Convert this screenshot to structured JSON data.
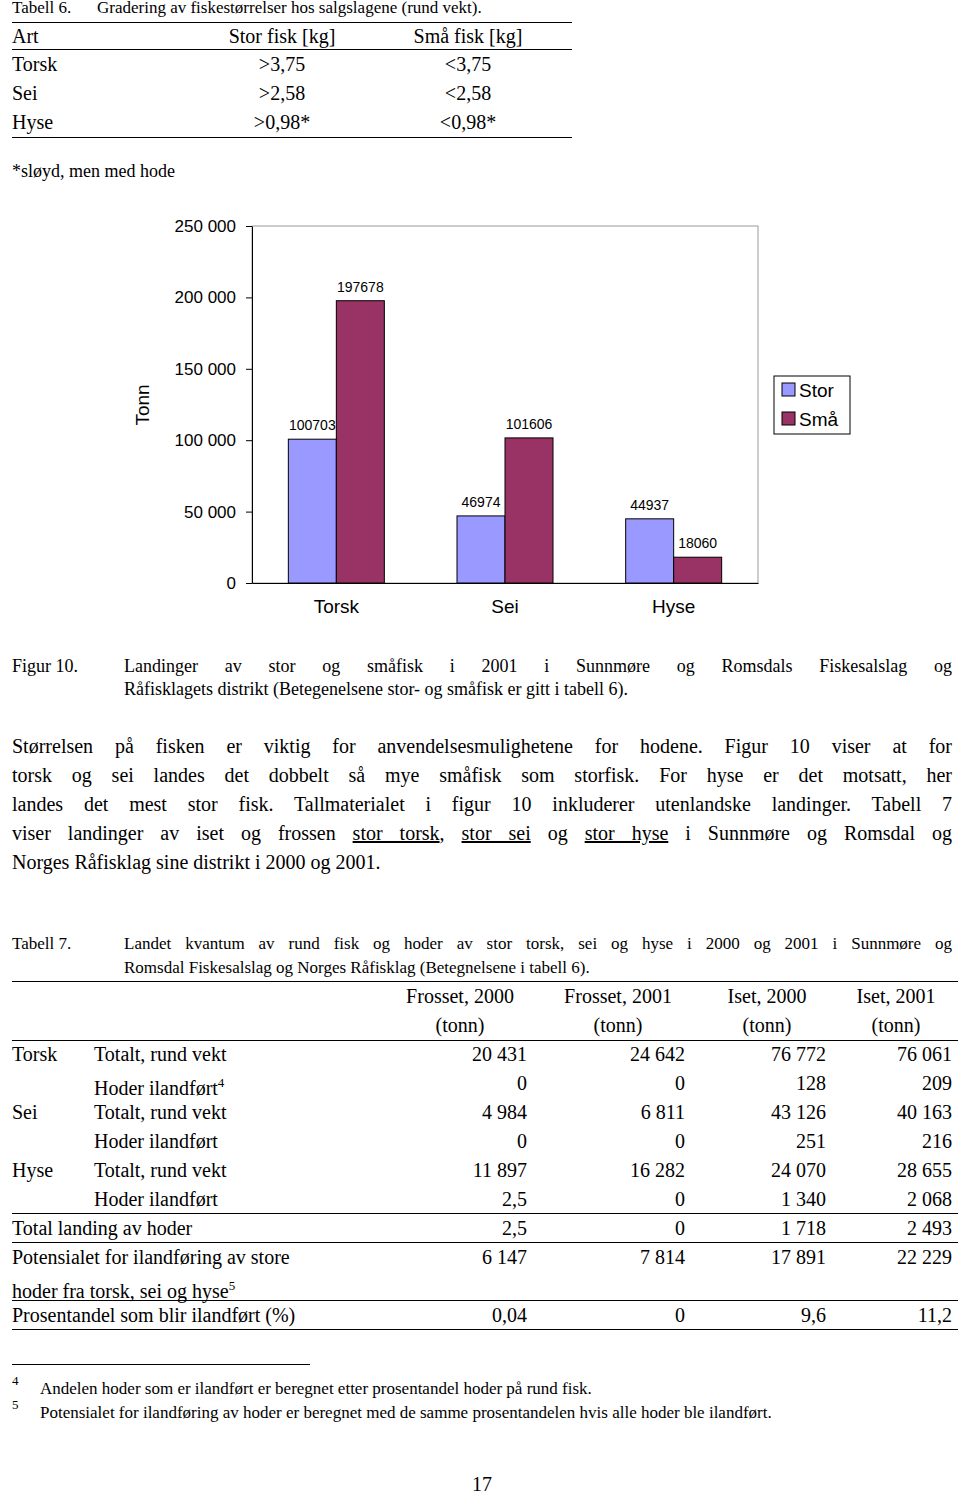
{
  "table6": {
    "caption_label": "Tabell 6.",
    "caption": "Gradering av fiskestørrelser hos salgslagene (rund vekt).",
    "header": [
      "Art",
      "Stor fisk [kg]",
      "Små fisk [kg]"
    ],
    "rows": [
      [
        "Torsk",
        ">3,75",
        "<3,75"
      ],
      [
        "Sei",
        ">2,58",
        "<2,58"
      ],
      [
        "Hyse",
        ">0,98*",
        "<0,98*"
      ]
    ],
    "note": "*sløyd, men med hode"
  },
  "chart_data": {
    "type": "bar",
    "y_label": "Tonn",
    "categories": [
      "Torsk",
      "Sei",
      "Hyse"
    ],
    "series": [
      {
        "name": "Stor",
        "color": "#9999ff",
        "values": [
          100703,
          46974,
          44937
        ]
      },
      {
        "name": "Små",
        "color": "#993366",
        "values": [
          197678,
          101606,
          18060
        ]
      }
    ],
    "ylim": [
      0,
      250000
    ],
    "yticks": [
      0,
      {
        "value": 50000,
        "label": "50 000"
      },
      {
        "value": 100000,
        "label": "100 000"
      },
      {
        "value": 150000,
        "label": "150 000"
      },
      {
        "value": 200000,
        "label": "200 000"
      },
      {
        "value": 250000,
        "label": "250 000"
      }
    ],
    "grid": false,
    "legend": "right",
    "data_labels": true
  },
  "figure_caption": {
    "label": "Figur 10.",
    "lines": [
      "Landinger av stor og småfisk i 2001 i Sunnmøre og Romsdals Fiskesalslag og",
      "Råfisklagets distrikt (Betegenelsene stor- og småfisk er gitt i tabell 6)."
    ]
  },
  "paragraph": {
    "lines": [
      [
        {
          "text": "Størrelsen på fisken er viktig for anvendelsesmulighetene for hodene. Figur 10 viser at for",
          "underline": false
        }
      ],
      [
        {
          "text": "torsk og sei landes det dobbelt så mye småfisk som storfisk. For hyse er det motsatt, her",
          "underline": false
        }
      ],
      [
        {
          "text": "landes det mest stor fisk. Tallmaterialet i figur 10 inkluderer utenlandske landinger. Tabell 7",
          "underline": false
        }
      ],
      [
        {
          "text": "viser landinger av iset og frossen ",
          "underline": false
        },
        {
          "text": "stor torsk",
          "underline": true
        },
        {
          "text": ", ",
          "underline": false
        },
        {
          "text": "stor sei",
          "underline": true
        },
        {
          "text": " og ",
          "underline": false
        },
        {
          "text": "stor hyse",
          "underline": true
        },
        {
          "text": " i Sunnmøre og Romsdal og",
          "underline": false
        }
      ],
      [
        {
          "text": "Norges Råfisklag sine distrikt i 2000 og 2001.",
          "underline": false
        }
      ]
    ]
  },
  "table7": {
    "caption_label": "Tabell 7.",
    "caption_lines": [
      "Landet kvantum av rund fisk og hoder av stor torsk, sei og hyse i 2000 og 2001 i Sunnmøre og",
      "Romsdal Fiskesalslag og Norges Råfisklag (Betegnelsene i tabell 6)."
    ],
    "header": [
      [
        "Frosset, 2000",
        "(tonn)"
      ],
      [
        "Frosset, 2001",
        "(tonn)"
      ],
      [
        "Iset, 2000",
        "(tonn)"
      ],
      [
        "Iset, 2001",
        "(tonn)"
      ]
    ],
    "species": [
      {
        "name": "Torsk",
        "rows": [
          {
            "label": "Totalt, rund vekt",
            "values": [
              "20 431",
              "24 642",
              "76 772",
              "76 061"
            ]
          },
          {
            "label": "Hoder ilandført",
            "sup": "4",
            "values": [
              "0",
              "0",
              "128",
              "209"
            ]
          }
        ]
      },
      {
        "name": "Sei",
        "rows": [
          {
            "label": "Totalt, rund vekt",
            "values": [
              "4 984",
              "6 811",
              "43 126",
              "40 163"
            ]
          },
          {
            "label": "Hoder ilandført",
            "values": [
              "0",
              "0",
              "251",
              "216"
            ]
          }
        ]
      },
      {
        "name": "Hyse",
        "rows": [
          {
            "label": "Totalt, rund vekt",
            "values": [
              "11 897",
              "16 282",
              "24 070",
              "28 655"
            ]
          },
          {
            "label": "Hoder ilandført",
            "values": [
              "2,5",
              "0",
              "1 340",
              "2 068"
            ]
          }
        ]
      }
    ],
    "summary_rows": [
      {
        "label_lines": [
          "Total landing av hoder"
        ],
        "values": [
          "2,5",
          "0",
          "1 718",
          "2 493"
        ]
      },
      {
        "label_lines": [
          "Potensialet for ilandføring av store",
          "hoder fra torsk, sei og hyse"
        ],
        "sup": "5",
        "values": [
          "6 147",
          "7 814",
          "17 891",
          "22 229"
        ]
      },
      {
        "label_lines": [
          "Prosentandel som blir ilandført (%)"
        ],
        "values": [
          "0,04",
          "0",
          "9,6",
          "11,2"
        ]
      }
    ]
  },
  "footnotes": [
    {
      "mark": "4",
      "text": "Andelen hoder som er ilandført er beregnet etter prosentandel hoder på rund fisk."
    },
    {
      "mark": "5",
      "text": "Potensialet for ilandføring av hoder er beregnet med de samme prosentandelen hvis alle hoder ble ilandført."
    }
  ],
  "page_number": "17"
}
